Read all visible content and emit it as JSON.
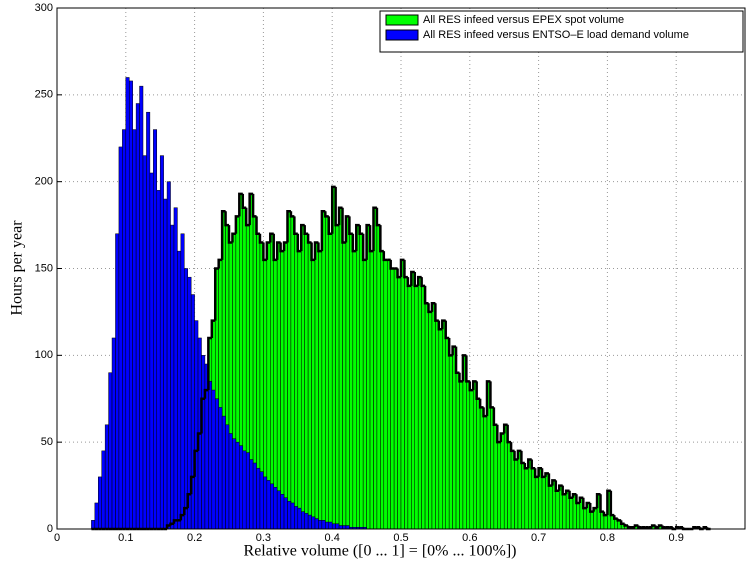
{
  "chart_data": {
    "type": "histogram",
    "xlabel": "Relative volume ([0 ... 1] = [0% ... 100%])",
    "ylabel": "Hours per year",
    "xlim": [
      0,
      1
    ],
    "ylim": [
      0,
      300
    ],
    "xticks": [
      0,
      0.1,
      0.2,
      0.3,
      0.4,
      0.5,
      0.6,
      0.7,
      0.8,
      0.9
    ],
    "yticks": [
      0,
      50,
      100,
      150,
      200,
      250,
      300
    ],
    "grid": true,
    "legend": "upper right",
    "bins": [
      0.05,
      0.055,
      0.06,
      0.065,
      0.07,
      0.075,
      0.08,
      0.085,
      0.09,
      0.095,
      0.1,
      0.105,
      0.11,
      0.115,
      0.12,
      0.125,
      0.13,
      0.135,
      0.14,
      0.145,
      0.15,
      0.155,
      0.16,
      0.165,
      0.17,
      0.175,
      0.18,
      0.185,
      0.19,
      0.195,
      0.2,
      0.205,
      0.21,
      0.215,
      0.22,
      0.225,
      0.23,
      0.235,
      0.24,
      0.245,
      0.25,
      0.255,
      0.26,
      0.265,
      0.27,
      0.275,
      0.28,
      0.285,
      0.29,
      0.295,
      0.3,
      0.305,
      0.31,
      0.315,
      0.32,
      0.325,
      0.33,
      0.335,
      0.34,
      0.345,
      0.35,
      0.355,
      0.36,
      0.365,
      0.37,
      0.375,
      0.38,
      0.385,
      0.39,
      0.395,
      0.4,
      0.405,
      0.41,
      0.415,
      0.42,
      0.425,
      0.43,
      0.435,
      0.44,
      0.445,
      0.45,
      0.455,
      0.46,
      0.465,
      0.47,
      0.475,
      0.48,
      0.485,
      0.49,
      0.495,
      0.5,
      0.505,
      0.51,
      0.515,
      0.52,
      0.525,
      0.53,
      0.535,
      0.54,
      0.545,
      0.55,
      0.555,
      0.56,
      0.565,
      0.57,
      0.575,
      0.58,
      0.585,
      0.59,
      0.595,
      0.6,
      0.605,
      0.61,
      0.615,
      0.62,
      0.625,
      0.63,
      0.635,
      0.64,
      0.645,
      0.65,
      0.655,
      0.66,
      0.665,
      0.67,
      0.675,
      0.68,
      0.685,
      0.69,
      0.695,
      0.7,
      0.705,
      0.71,
      0.715,
      0.72,
      0.725,
      0.73,
      0.735,
      0.74,
      0.745,
      0.75,
      0.755,
      0.76,
      0.765,
      0.77,
      0.775,
      0.78,
      0.785,
      0.79,
      0.795,
      0.8,
      0.805,
      0.81,
      0.815,
      0.82,
      0.825,
      0.83,
      0.835,
      0.84,
      0.845,
      0.85,
      0.855,
      0.86,
      0.865,
      0.87,
      0.875,
      0.88,
      0.885,
      0.89,
      0.895,
      0.9,
      0.905,
      0.91,
      0.915,
      0.92,
      0.925,
      0.93,
      0.935,
      0.94,
      0.945,
      0.95
    ],
    "series": [
      {
        "name": "All RES infeed versus EPEX spot volume",
        "color": "#00ff00",
        "outline": "#000000",
        "values": [
          0,
          0,
          0,
          0,
          0,
          0,
          0,
          0,
          0,
          0,
          0,
          0,
          0,
          0,
          0,
          0,
          0,
          0,
          0,
          0,
          0,
          0,
          2,
          3,
          5,
          5,
          8,
          12,
          20,
          30,
          45,
          55,
          75,
          80,
          110,
          120,
          150,
          155,
          183,
          175,
          165,
          170,
          180,
          193,
          185,
          175,
          193,
          180,
          170,
          165,
          155,
          165,
          170,
          155,
          165,
          160,
          165,
          183,
          180,
          170,
          160,
          175,
          170,
          165,
          155,
          165,
          160,
          183,
          180,
          170,
          197,
          175,
          185,
          165,
          180,
          170,
          160,
          175,
          170,
          155,
          175,
          160,
          185,
          175,
          160,
          155,
          155,
          150,
          150,
          145,
          155,
          145,
          140,
          148,
          140,
          145,
          140,
          130,
          125,
          130,
          120,
          115,
          120,
          110,
          100,
          105,
          90,
          85,
          100,
          85,
          80,
          85,
          75,
          70,
          65,
          85,
          70,
          60,
          50,
          55,
          60,
          50,
          45,
          40,
          45,
          38,
          35,
          40,
          35,
          30,
          35,
          30,
          32,
          25,
          28,
          22,
          25,
          20,
          22,
          18,
          20,
          15,
          18,
          12,
          15,
          10,
          12,
          20,
          10,
          8,
          22,
          8,
          6,
          5,
          3,
          2,
          1,
          1,
          2,
          1,
          1,
          1,
          1,
          2,
          1,
          2,
          1,
          1,
          1,
          0,
          1,
          1,
          0,
          0,
          0,
          1,
          1,
          0,
          1,
          0
        ]
      },
      {
        "name": "All RES infeed versus ENTSO–E load demand volume",
        "color": "#0000ff",
        "values": [
          5,
          15,
          30,
          45,
          60,
          90,
          110,
          170,
          220,
          230,
          260,
          258,
          230,
          245,
          255,
          215,
          240,
          205,
          230,
          195,
          215,
          190,
          200,
          175,
          185,
          160,
          170,
          150,
          145,
          135,
          120,
          110,
          100,
          95,
          85,
          80,
          75,
          70,
          65,
          60,
          55,
          52,
          50,
          48,
          45,
          44,
          40,
          38,
          35,
          33,
          30,
          28,
          26,
          24,
          22,
          20,
          18,
          16,
          15,
          13,
          12,
          10,
          9,
          8,
          7,
          6,
          5,
          5,
          4,
          4,
          3,
          3,
          2,
          2,
          2,
          1,
          1,
          1,
          1,
          1,
          0,
          0,
          0,
          0,
          0,
          0,
          0,
          0,
          0,
          0,
          0,
          0,
          0,
          0,
          0,
          0,
          0,
          0,
          0,
          0,
          0,
          0,
          0,
          0,
          0,
          0,
          0,
          0,
          0,
          0,
          0,
          0,
          0,
          0,
          0,
          0,
          0,
          0,
          0,
          0,
          0,
          0,
          0,
          0,
          0,
          0,
          0,
          0,
          0,
          0,
          0,
          0,
          0,
          0,
          0,
          0,
          0,
          0,
          0,
          0,
          0,
          0,
          0,
          0,
          0,
          0,
          0,
          0,
          0,
          0,
          0,
          0,
          0,
          0,
          0,
          0,
          0,
          0,
          0,
          0,
          0,
          0,
          0,
          0,
          0,
          0,
          0,
          0,
          0,
          0,
          0,
          0,
          0,
          0,
          0,
          0,
          0,
          0,
          0,
          0
        ]
      }
    ]
  }
}
